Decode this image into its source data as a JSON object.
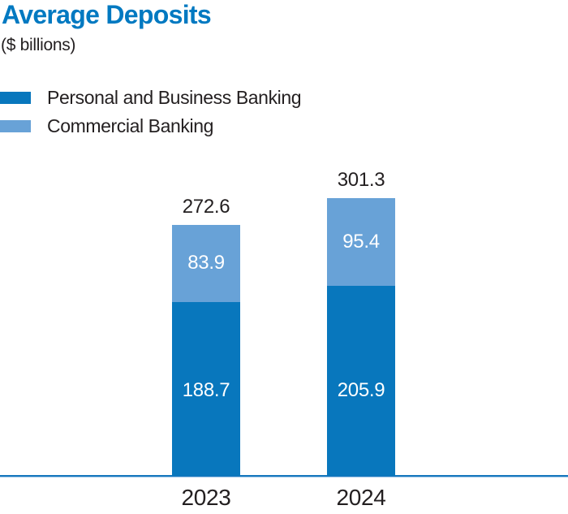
{
  "header": {
    "title": "Average Deposits",
    "subtitle": "($ billions)"
  },
  "colors": {
    "title": "#0079C1",
    "text": "#231F20",
    "on_bar_label": "#FFFFFF",
    "axis": "#1677BD",
    "axis_light": "#9FC7E8"
  },
  "chart_data": {
    "type": "bar",
    "stacked": true,
    "title": "Average Deposits",
    "subtitle": "($ billions)",
    "unit": "$ billions",
    "categories": [
      "2023",
      "2024"
    ],
    "series": [
      {
        "name": "Personal and Business Banking",
        "color": "#0877BD",
        "values": [
          188.7,
          205.9
        ]
      },
      {
        "name": "Commercial Banking",
        "color": "#68A2D7",
        "values": [
          83.9,
          95.4
        ]
      }
    ],
    "totals": [
      "272.6",
      "301.3"
    ],
    "legend_position": "top-left",
    "grid": false,
    "value_labels": "inside-white",
    "total_labels": "above-bar"
  }
}
